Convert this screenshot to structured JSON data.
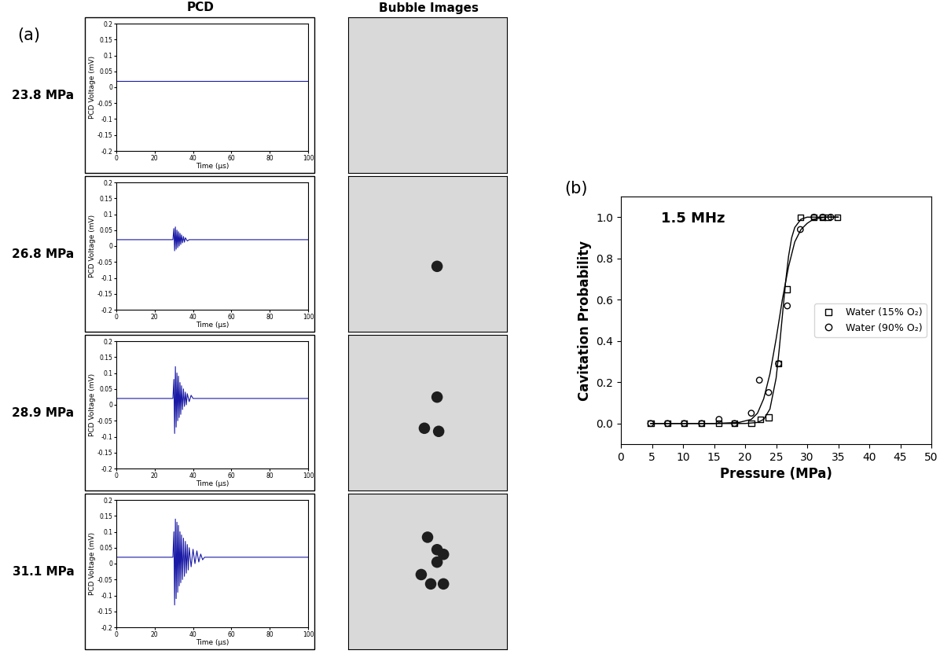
{
  "panel_labels": [
    "(a)",
    "(b)"
  ],
  "column_headers": [
    "PCD",
    "Bubble Images"
  ],
  "row_labels": [
    "23.8 MPa",
    "26.8 MPa",
    "28.9 MPa",
    "31.1 MPa"
  ],
  "pcd_charts": [
    {
      "type": "line",
      "x_label": "Time (µs)",
      "y_label": "PCD Voltage (mV)",
      "color": "#1a1aa6",
      "xlim": [
        0,
        100
      ],
      "xticks": [
        0,
        20,
        40,
        60,
        80,
        100
      ],
      "ylim": [
        -0.2,
        0.2
      ],
      "yticks": [
        -0.2,
        -0.15,
        -0.1,
        -0.05,
        0,
        0.05,
        0.1,
        0.15,
        0.2
      ],
      "x": [
        0,
        100
      ],
      "values": [
        0.02,
        0.02
      ]
    },
    {
      "type": "line",
      "x_label": "Time (µs)",
      "y_label": "PCD Voltage (mV)",
      "color": "#1a1aa6",
      "xlim": [
        0,
        100
      ],
      "xticks": [
        0,
        20,
        40,
        60,
        80,
        100
      ],
      "ylim": [
        -0.2,
        0.2
      ],
      "yticks": [
        -0.2,
        -0.15,
        -0.1,
        -0.05,
        0,
        0.05,
        0.1,
        0.15,
        0.2
      ],
      "x": [
        0,
        29.5,
        30,
        30.4,
        30.8,
        31.2,
        31.6,
        32,
        32.4,
        32.8,
        33.2,
        33.6,
        34,
        34.5,
        35,
        35.5,
        36,
        37,
        38,
        100
      ],
      "values": [
        0.02,
        0.02,
        0.055,
        -0.015,
        0.06,
        -0.01,
        0.05,
        -0.005,
        0.045,
        0.0,
        0.04,
        0.005,
        0.035,
        0.01,
        0.03,
        0.012,
        0.026,
        0.016,
        0.02,
        0.02
      ]
    },
    {
      "type": "line",
      "x_label": "Time (µs)",
      "y_label": "PCD Voltage (mV)",
      "color": "#1a1aa6",
      "xlim": [
        0,
        100
      ],
      "xticks": [
        0,
        20,
        40,
        60,
        80,
        100
      ],
      "ylim": [
        -0.2,
        0.2
      ],
      "yticks": [
        -0.2,
        -0.15,
        -0.1,
        -0.05,
        0,
        0.05,
        0.1,
        0.15,
        0.2
      ],
      "x": [
        0,
        29.5,
        30,
        30.4,
        30.8,
        31.2,
        31.6,
        32,
        32.4,
        32.8,
        33.2,
        33.6,
        34,
        34.5,
        35,
        35.5,
        36,
        36.5,
        37,
        38,
        39,
        40,
        100
      ],
      "values": [
        0.02,
        0.02,
        0.08,
        -0.09,
        0.12,
        -0.07,
        0.1,
        -0.05,
        0.09,
        -0.04,
        0.07,
        -0.03,
        0.06,
        -0.015,
        0.05,
        -0.005,
        0.04,
        0.0,
        0.035,
        0.01,
        0.03,
        0.02,
        0.02
      ]
    },
    {
      "type": "line",
      "x_label": "Time (µs)",
      "y_label": "PCD Voltage (mV)",
      "color": "#1a1aa6",
      "xlim": [
        0,
        100
      ],
      "xticks": [
        0,
        20,
        40,
        60,
        80,
        100
      ],
      "ylim": [
        -0.2,
        0.2
      ],
      "yticks": [
        -0.2,
        -0.15,
        -0.1,
        -0.05,
        0,
        0.05,
        0.1,
        0.15,
        0.2
      ],
      "x": [
        0,
        29.5,
        30,
        30.4,
        30.8,
        31.2,
        31.6,
        32,
        32.4,
        32.8,
        33.2,
        33.6,
        34,
        34.5,
        35,
        35.5,
        36,
        36.5,
        37,
        37.5,
        38,
        39,
        40,
        41,
        42,
        43,
        44,
        45,
        46,
        100
      ],
      "values": [
        0.02,
        0.02,
        0.1,
        -0.13,
        0.14,
        -0.11,
        0.13,
        -0.09,
        0.12,
        -0.07,
        0.1,
        -0.06,
        0.09,
        -0.05,
        0.08,
        -0.04,
        0.07,
        -0.03,
        0.06,
        -0.02,
        0.05,
        -0.01,
        0.045,
        0.0,
        0.04,
        0.005,
        0.03,
        0.012,
        0.02,
        0.02
      ]
    }
  ],
  "bubble_images": [
    {
      "type": "scatter",
      "tick_labels": false,
      "color": "#1e1e1e",
      "background": "#d9d9d9",
      "xlim": [
        0,
        1
      ],
      "ylim": [
        0,
        1
      ],
      "xticks": [],
      "yticks": [],
      "x": [],
      "values": []
    },
    {
      "type": "scatter",
      "tick_labels": false,
      "color": "#1e1e1e",
      "background": "#d9d9d9",
      "xlim": [
        0,
        1
      ],
      "ylim": [
        0,
        1
      ],
      "xticks": [],
      "yticks": [],
      "x": [
        0.56
      ],
      "values": [
        0.42
      ]
    },
    {
      "type": "scatter",
      "tick_labels": false,
      "color": "#1e1e1e",
      "background": "#d9d9d9",
      "xlim": [
        0,
        1
      ],
      "ylim": [
        0,
        1
      ],
      "xticks": [],
      "yticks": [],
      "x": [
        0.56,
        0.48,
        0.57
      ],
      "values": [
        0.6,
        0.4,
        0.38
      ]
    },
    {
      "type": "scatter",
      "tick_labels": false,
      "color": "#1e1e1e",
      "background": "#d9d9d9",
      "xlim": [
        0,
        1
      ],
      "ylim": [
        0,
        1
      ],
      "xticks": [],
      "yticks": [],
      "x": [
        0.5,
        0.56,
        0.6,
        0.56,
        0.46,
        0.52,
        0.6
      ],
      "values": [
        0.72,
        0.64,
        0.61,
        0.56,
        0.48,
        0.42,
        0.42
      ]
    }
  ],
  "chart_data": {
    "type": "scatter",
    "title": "1.5 MHz",
    "x_label": "Pressure (MPa)",
    "y_label": "Cavitation Probability",
    "xlim": [
      0,
      50
    ],
    "xticks": [
      0,
      5,
      10,
      15,
      20,
      25,
      30,
      35,
      40,
      45,
      50
    ],
    "ylim": [
      -0.1,
      1.1
    ],
    "yticks": [
      {
        "value": 0,
        "label": "0.0"
      },
      0.2,
      0.4,
      0.6,
      0.8,
      {
        "value": 1,
        "label": "1.0"
      }
    ],
    "legend": "center right",
    "series": [
      {
        "name": "Water (15% O₂)",
        "type": "scatter",
        "marker": "square",
        "color": "#000000",
        "x": [
          4.8,
          7.5,
          10.2,
          13.0,
          15.8,
          18.3,
          21.0,
          22.5,
          23.8,
          25.4,
          26.8,
          28.9,
          31.1,
          32.5,
          33.3,
          34.9
        ],
        "values": [
          0,
          0,
          0,
          0,
          0,
          0,
          0,
          0.02,
          0.03,
          0.29,
          0.65,
          1.0,
          1.0,
          1.0,
          1.0,
          1.0
        ]
      },
      {
        "name": "Water (90% O₂)",
        "type": "scatter",
        "marker": "circle",
        "color": "#000000",
        "x": [
          4.8,
          7.5,
          10.2,
          13.0,
          15.8,
          18.3,
          21.0,
          22.3,
          23.8,
          25.4,
          26.8,
          28.9,
          31.1,
          32.5,
          33.8
        ],
        "values": [
          0,
          0,
          0,
          0,
          0.02,
          0,
          0.05,
          0.21,
          0.15,
          0.29,
          0.57,
          0.94,
          1.0,
          1.0,
          1.0
        ]
      },
      {
        "type": "line",
        "line_style": "solid",
        "color": "#000000",
        "x": [
          4.8,
          15,
          20,
          22,
          23,
          24,
          25,
          25.5,
          26,
          26.5,
          27,
          27.5,
          28,
          29,
          30,
          35
        ],
        "values": [
          0,
          0,
          0,
          0.005,
          0.02,
          0.07,
          0.22,
          0.36,
          0.52,
          0.68,
          0.81,
          0.9,
          0.95,
          0.99,
          1.0,
          1.0
        ]
      },
      {
        "type": "line",
        "line_style": "solid",
        "color": "#000000",
        "x": [
          4.8,
          15,
          19,
          21,
          22,
          23,
          24,
          25,
          26,
          27,
          28,
          29,
          30,
          31,
          33,
          35
        ],
        "values": [
          0,
          0,
          0.005,
          0.02,
          0.05,
          0.12,
          0.24,
          0.41,
          0.6,
          0.76,
          0.88,
          0.94,
          0.97,
          0.99,
          1.0,
          1.0
        ]
      }
    ]
  }
}
